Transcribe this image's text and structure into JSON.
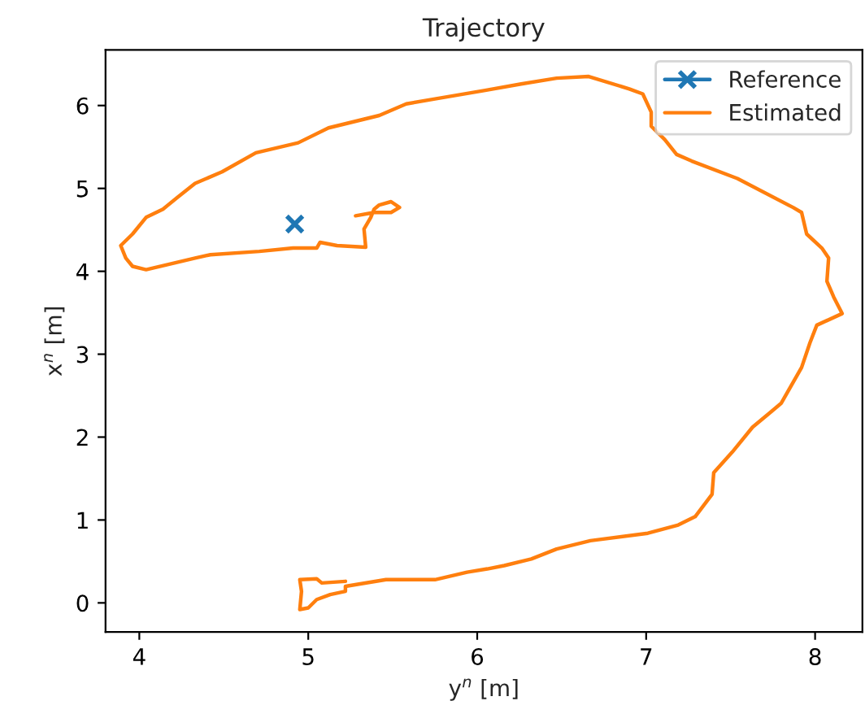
{
  "chart_data": {
    "type": "line",
    "title": "Trajectory",
    "xlabel": "y$^{n}$ [m]",
    "ylabel": "x$^{n}$ [m]",
    "xlim": [
      3.8,
      8.28
    ],
    "ylim": [
      -0.35,
      6.67
    ],
    "xticks": [
      4,
      5,
      6,
      7,
      8
    ],
    "yticks": [
      0,
      1,
      2,
      3,
      4,
      5,
      6
    ],
    "grid": false,
    "legend": "top right",
    "series": [
      {
        "name": "Reference",
        "color": "#1f77b4",
        "marker": "cross",
        "x": [
          4.92
        ],
        "values": [
          4.57
        ]
      },
      {
        "name": "Estimated",
        "color": "#ff7f0e",
        "marker": "none",
        "x": [
          5.22,
          5.08,
          5.05,
          4.95,
          4.96,
          4.95,
          5.0,
          5.05,
          5.13,
          5.22,
          5.22,
          5.46,
          5.75,
          5.94,
          6.06,
          6.16,
          6.32,
          6.47,
          6.67,
          7.01,
          7.19,
          7.29,
          7.39,
          7.4,
          7.51,
          7.63,
          7.73,
          7.8,
          7.92,
          7.97,
          8.01,
          8.16,
          8.11,
          8.07,
          8.08,
          8.04,
          7.95,
          7.92,
          7.87,
          7.54,
          7.27,
          7.18,
          7.11,
          7.03,
          7.03,
          6.98,
          6.9,
          6.66,
          6.47,
          6.26,
          6.04,
          5.75,
          5.58,
          5.42,
          5.12,
          4.94,
          4.69,
          4.49,
          4.33,
          4.23,
          4.14,
          4.04,
          3.96,
          3.89,
          3.92,
          3.96,
          4.04,
          4.33,
          4.42,
          4.71,
          4.91,
          5.05,
          5.07,
          5.17,
          5.34,
          5.33,
          5.37,
          5.39,
          5.42,
          5.49,
          5.54,
          5.49,
          5.39,
          5.28
        ],
        "values": [
          0.26,
          0.24,
          0.29,
          0.28,
          0.14,
          -0.08,
          -0.06,
          0.04,
          0.1,
          0.14,
          0.2,
          0.28,
          0.28,
          0.37,
          0.41,
          0.45,
          0.53,
          0.65,
          0.75,
          0.84,
          0.94,
          1.04,
          1.31,
          1.57,
          1.82,
          2.12,
          2.29,
          2.41,
          2.84,
          3.14,
          3.35,
          3.49,
          3.69,
          3.88,
          4.16,
          4.28,
          4.45,
          4.71,
          4.77,
          5.12,
          5.33,
          5.41,
          5.59,
          5.75,
          5.92,
          6.14,
          6.2,
          6.35,
          6.33,
          6.26,
          6.18,
          6.08,
          6.02,
          5.88,
          5.73,
          5.55,
          5.43,
          5.2,
          5.06,
          4.9,
          4.75,
          4.65,
          4.45,
          4.31,
          4.16,
          4.06,
          4.02,
          4.16,
          4.2,
          4.24,
          4.28,
          4.28,
          4.35,
          4.31,
          4.29,
          4.51,
          4.65,
          4.75,
          4.8,
          4.84,
          4.77,
          4.71,
          4.71,
          4.67
        ]
      }
    ]
  }
}
